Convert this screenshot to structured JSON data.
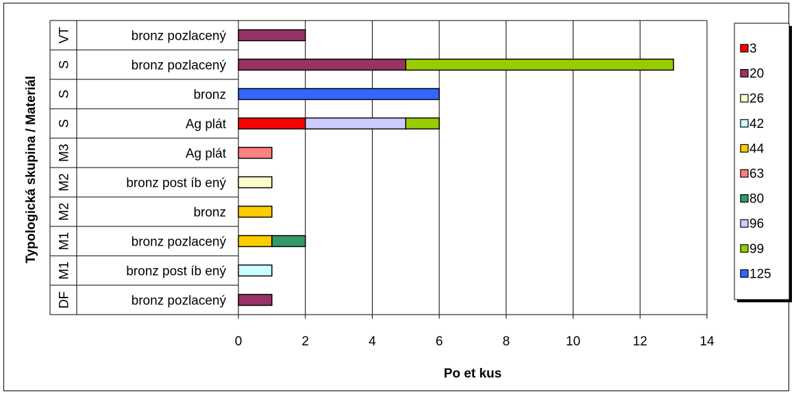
{
  "chart_data": {
    "type": "bar",
    "orientation": "horizontal",
    "stacked": true,
    "x_axis_title": "Po  et kus",
    "y_axis_title": "Typologická skupina / Materiál",
    "xlim": [
      0,
      14
    ],
    "x_ticks": [
      0,
      2,
      4,
      6,
      8,
      10,
      12,
      14
    ],
    "grid": true,
    "legend_position": "right",
    "categories": [
      {
        "group": "VT",
        "material": "bronz pozlacený"
      },
      {
        "group": "S",
        "material": "bronz pozlacený"
      },
      {
        "group": "S",
        "material": "bronz"
      },
      {
        "group": "S",
        "material": "Ag plát"
      },
      {
        "group": "M3",
        "material": "Ag plát"
      },
      {
        "group": "M2",
        "material": "bronz post íb ený"
      },
      {
        "group": "M2",
        "material": "bronz"
      },
      {
        "group": "M1",
        "material": "bronz pozlacený"
      },
      {
        "group": "M1",
        "material": "bronz post íb ený"
      },
      {
        "group": "DF",
        "material": "bronz pozlacený"
      }
    ],
    "series": [
      {
        "name": "3",
        "color": "#ff0000",
        "values": [
          0,
          0,
          0,
          2,
          0,
          0,
          0,
          0,
          0,
          0
        ]
      },
      {
        "name": "20",
        "color": "#993366",
        "values": [
          2,
          5,
          0,
          0,
          0,
          0,
          0,
          0,
          0,
          1
        ]
      },
      {
        "name": "26",
        "color": "#ffffcc",
        "values": [
          0,
          0,
          0,
          0,
          0,
          1,
          0,
          0,
          0,
          0
        ]
      },
      {
        "name": "42",
        "color": "#ccffff",
        "values": [
          0,
          0,
          0,
          0,
          0,
          0,
          0,
          0,
          1,
          0
        ]
      },
      {
        "name": "44",
        "color": "#ffcc00",
        "values": [
          0,
          0,
          0,
          0,
          0,
          0,
          1,
          1,
          0,
          0
        ]
      },
      {
        "name": "63",
        "color": "#ff8080",
        "values": [
          0,
          0,
          0,
          0,
          1,
          0,
          0,
          0,
          0,
          0
        ]
      },
      {
        "name": "80",
        "color": "#339966",
        "values": [
          0,
          0,
          0,
          0,
          0,
          0,
          0,
          1,
          0,
          0
        ]
      },
      {
        "name": "96",
        "color": "#ccccff",
        "values": [
          0,
          0,
          0,
          3,
          0,
          0,
          0,
          0,
          0,
          0
        ]
      },
      {
        "name": "99",
        "color": "#99cc00",
        "values": [
          0,
          8,
          0,
          1,
          0,
          0,
          0,
          0,
          0,
          0
        ]
      },
      {
        "name": "125",
        "color": "#3366ff",
        "values": [
          0,
          0,
          6,
          0,
          0,
          0,
          0,
          0,
          0,
          0
        ]
      }
    ]
  }
}
